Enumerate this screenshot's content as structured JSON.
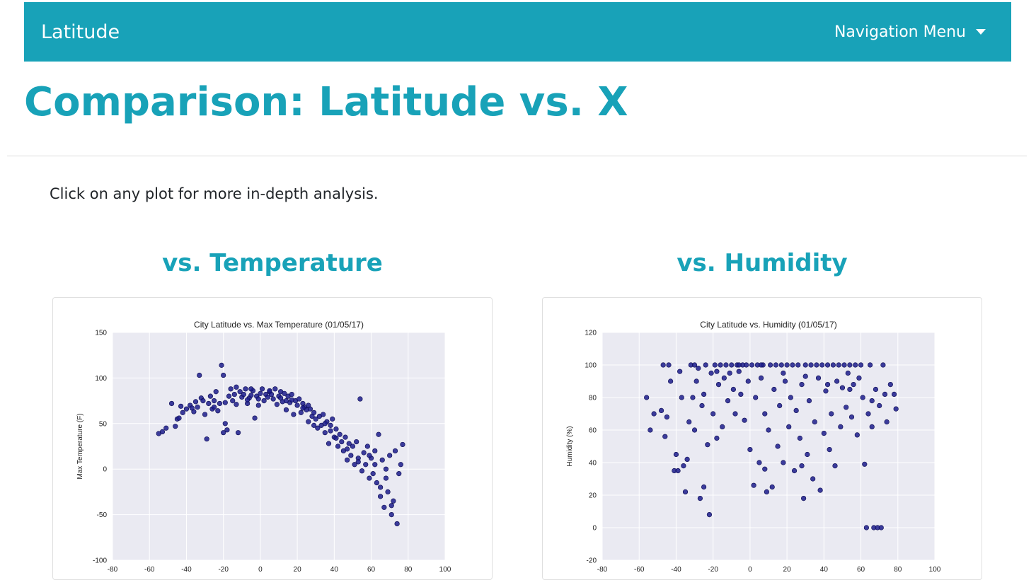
{
  "navbar": {
    "brand": "Latitude",
    "menu_label": "Navigation Menu"
  },
  "page": {
    "title": "Comparison: Latitude vs. X",
    "intro": "Click on any plot for more in-depth analysis."
  },
  "plots": [
    {
      "heading": "vs. Temperature"
    },
    {
      "heading": "vs. Humidity"
    }
  ],
  "colors": {
    "accent": "#18a2b8",
    "plot_bg": "#eaeaf2",
    "marker": "#1c1c8c"
  },
  "chart_data": [
    {
      "type": "scatter",
      "title": "City Latitude vs. Max Temperature (01/05/17)",
      "xlabel": "",
      "ylabel": "Max Temperature (F)",
      "xlim": [
        -80,
        100
      ],
      "ylim": [
        -100,
        150
      ],
      "xticks": [
        -80,
        -60,
        -40,
        -20,
        0,
        20,
        40,
        60,
        80,
        100
      ],
      "yticks": [
        -100,
        -50,
        0,
        50,
        100,
        150
      ],
      "grid": true,
      "points": [
        [
          -55,
          39
        ],
        [
          -53,
          41
        ],
        [
          -51,
          45
        ],
        [
          -46,
          47
        ],
        [
          -45,
          55
        ],
        [
          -44,
          56
        ],
        [
          -42,
          62
        ],
        [
          -40,
          66
        ],
        [
          -38,
          70
        ],
        [
          -36,
          63
        ],
        [
          -35,
          74
        ],
        [
          -34,
          68
        ],
        [
          -33,
          103
        ],
        [
          -32,
          78
        ],
        [
          -30,
          60
        ],
        [
          -29,
          33
        ],
        [
          -28,
          72
        ],
        [
          -27,
          80
        ],
        [
          -26,
          66
        ],
        [
          -25,
          75
        ],
        [
          -24,
          85
        ],
        [
          -23,
          64
        ],
        [
          -22,
          72
        ],
        [
          -21,
          114
        ],
        [
          -20,
          103
        ],
        [
          -19,
          50
        ],
        [
          -18,
          43
        ],
        [
          -17,
          80
        ],
        [
          -16,
          88
        ],
        [
          -15,
          75
        ],
        [
          -14,
          82
        ],
        [
          -13,
          71
        ],
        [
          -12,
          40
        ],
        [
          -11,
          85
        ],
        [
          -10,
          79
        ],
        [
          -9,
          82
        ],
        [
          -8,
          88
        ],
        [
          -7,
          72
        ],
        [
          -6,
          78
        ],
        [
          -5,
          81
        ],
        [
          -4,
          86
        ],
        [
          -3,
          56
        ],
        [
          -2,
          80
        ],
        [
          -1,
          77
        ],
        [
          0,
          83
        ],
        [
          1,
          88
        ],
        [
          2,
          75
        ],
        [
          3,
          82
        ],
        [
          4,
          79
        ],
        [
          5,
          85
        ],
        [
          6,
          82
        ],
        [
          7,
          77
        ],
        [
          8,
          88
        ],
        [
          9,
          71
        ],
        [
          10,
          80
        ],
        [
          11,
          85
        ],
        [
          12,
          74
        ],
        [
          13,
          83
        ],
        [
          14,
          65
        ],
        [
          15,
          80
        ],
        [
          16,
          73
        ],
        [
          17,
          82
        ],
        [
          18,
          60
        ],
        [
          19,
          75
        ],
        [
          20,
          70
        ],
        [
          21,
          77
        ],
        [
          22,
          62
        ],
        [
          23,
          72
        ],
        [
          24,
          68
        ],
        [
          25,
          65
        ],
        [
          26,
          52
        ],
        [
          27,
          66
        ],
        [
          28,
          58
        ],
        [
          29,
          62
        ],
        [
          30,
          55
        ],
        [
          31,
          45
        ],
        [
          32,
          58
        ],
        [
          33,
          48
        ],
        [
          34,
          60
        ],
        [
          35,
          40
        ],
        [
          36,
          52
        ],
        [
          37,
          28
        ],
        [
          38,
          48
        ],
        [
          39,
          55
        ],
        [
          40,
          35
        ],
        [
          41,
          44
        ],
        [
          42,
          25
        ],
        [
          43,
          38
        ],
        [
          44,
          30
        ],
        [
          45,
          20
        ],
        [
          46,
          35
        ],
        [
          47,
          10
        ],
        [
          48,
          28
        ],
        [
          49,
          15
        ],
        [
          50,
          25
        ],
        [
          51,
          5
        ],
        [
          52,
          30
        ],
        [
          53,
          12
        ],
        [
          54,
          77
        ],
        [
          55,
          -2
        ],
        [
          56,
          18
        ],
        [
          57,
          5
        ],
        [
          58,
          25
        ],
        [
          59,
          -10
        ],
        [
          60,
          12
        ],
        [
          61,
          -5
        ],
        [
          62,
          20
        ],
        [
          63,
          -15
        ],
        [
          64,
          38
        ],
        [
          65,
          -30
        ],
        [
          66,
          10
        ],
        [
          67,
          -42
        ],
        [
          68,
          0
        ],
        [
          69,
          -25
        ],
        [
          70,
          15
        ],
        [
          71,
          -50
        ],
        [
          72,
          -35
        ],
        [
          73,
          20
        ],
        [
          74,
          -60
        ],
        [
          75,
          -5
        ],
        [
          76,
          5
        ],
        [
          77,
          27
        ],
        [
          -43,
          69
        ],
        [
          -37,
          67
        ],
        [
          -31,
          75
        ],
        [
          -25,
          68
        ],
        [
          -19,
          73
        ],
        [
          -13,
          90
        ],
        [
          -7,
          76
        ],
        [
          -1,
          70
        ],
        [
          5,
          86
        ],
        [
          11,
          78
        ],
        [
          17,
          76
        ],
        [
          23,
          67
        ],
        [
          29,
          48
        ],
        [
          35,
          50
        ],
        [
          41,
          34
        ],
        [
          47,
          22
        ],
        [
          53,
          8
        ],
        [
          59,
          15
        ],
        [
          65,
          -20
        ],
        [
          71,
          -40
        ],
        [
          -48,
          72
        ],
        [
          -20,
          40
        ],
        [
          14,
          75
        ],
        [
          38,
          42
        ],
        [
          62,
          5
        ],
        [
          68,
          -10
        ],
        [
          -5,
          88
        ],
        [
          26,
          70
        ]
      ]
    },
    {
      "type": "scatter",
      "title": "City Latitude vs. Humidity (01/05/17)",
      "xlabel": "",
      "ylabel": "Humidity (%)",
      "xlim": [
        -80,
        100
      ],
      "ylim": [
        -20,
        120
      ],
      "xticks": [
        -80,
        -60,
        -40,
        -20,
        0,
        20,
        40,
        60,
        80,
        100
      ],
      "yticks": [
        -20,
        0,
        20,
        40,
        60,
        80,
        100,
        120
      ],
      "grid": true,
      "points": [
        [
          -56,
          80
        ],
        [
          -54,
          60
        ],
        [
          -52,
          70
        ],
        [
          -48,
          72
        ],
        [
          -47,
          100
        ],
        [
          -46,
          56
        ],
        [
          -45,
          68
        ],
        [
          -43,
          90
        ],
        [
          -41,
          35
        ],
        [
          -40,
          45
        ],
        [
          -39,
          35
        ],
        [
          -38,
          96
        ],
        [
          -37,
          80
        ],
        [
          -36,
          38
        ],
        [
          -35,
          22
        ],
        [
          -34,
          42
        ],
        [
          -33,
          65
        ],
        [
          -32,
          100
        ],
        [
          -31,
          80
        ],
        [
          -30,
          60
        ],
        [
          -29,
          90
        ],
        [
          -28,
          98
        ],
        [
          -27,
          18
        ],
        [
          -26,
          75
        ],
        [
          -25,
          82
        ],
        [
          -24,
          100
        ],
        [
          -23,
          51
        ],
        [
          -22,
          8
        ],
        [
          -21,
          95
        ],
        [
          -20,
          70
        ],
        [
          -19,
          100
        ],
        [
          -18,
          55
        ],
        [
          -17,
          88
        ],
        [
          -16,
          100
        ],
        [
          -15,
          62
        ],
        [
          -14,
          92
        ],
        [
          -13,
          100
        ],
        [
          -12,
          78
        ],
        [
          -11,
          95
        ],
        [
          -10,
          100
        ],
        [
          -9,
          85
        ],
        [
          -8,
          70
        ],
        [
          -7,
          100
        ],
        [
          -6,
          96
        ],
        [
          -5,
          82
        ],
        [
          -4,
          100
        ],
        [
          -3,
          66
        ],
        [
          -2,
          100
        ],
        [
          -1,
          90
        ],
        [
          0,
          48
        ],
        [
          1,
          100
        ],
        [
          2,
          26
        ],
        [
          3,
          80
        ],
        [
          4,
          100
        ],
        [
          5,
          40
        ],
        [
          6,
          92
        ],
        [
          7,
          100
        ],
        [
          8,
          70
        ],
        [
          9,
          22
        ],
        [
          10,
          60
        ],
        [
          11,
          100
        ],
        [
          12,
          25
        ],
        [
          13,
          85
        ],
        [
          14,
          100
        ],
        [
          15,
          50
        ],
        [
          16,
          75
        ],
        [
          17,
          100
        ],
        [
          18,
          40
        ],
        [
          19,
          90
        ],
        [
          20,
          100
        ],
        [
          21,
          62
        ],
        [
          22,
          80
        ],
        [
          23,
          100
        ],
        [
          24,
          35
        ],
        [
          25,
          72
        ],
        [
          26,
          100
        ],
        [
          27,
          55
        ],
        [
          28,
          88
        ],
        [
          29,
          18
        ],
        [
          30,
          100
        ],
        [
          31,
          45
        ],
        [
          32,
          78
        ],
        [
          33,
          100
        ],
        [
          34,
          30
        ],
        [
          35,
          65
        ],
        [
          36,
          100
        ],
        [
          37,
          92
        ],
        [
          38,
          23
        ],
        [
          39,
          100
        ],
        [
          40,
          58
        ],
        [
          41,
          84
        ],
        [
          42,
          100
        ],
        [
          43,
          48
        ],
        [
          44,
          70
        ],
        [
          45,
          100
        ],
        [
          46,
          38
        ],
        [
          47,
          90
        ],
        [
          48,
          100
        ],
        [
          49,
          62
        ],
        [
          50,
          86
        ],
        [
          51,
          100
        ],
        [
          52,
          74
        ],
        [
          53,
          95
        ],
        [
          54,
          100
        ],
        [
          55,
          68
        ],
        [
          56,
          88
        ],
        [
          57,
          100
        ],
        [
          58,
          57
        ],
        [
          59,
          92
        ],
        [
          60,
          100
        ],
        [
          61,
          80
        ],
        [
          62,
          39
        ],
        [
          63,
          0
        ],
        [
          64,
          70
        ],
        [
          65,
          100
        ],
        [
          66,
          62
        ],
        [
          67,
          0
        ],
        [
          68,
          85
        ],
        [
          69,
          0
        ],
        [
          70,
          75
        ],
        [
          71,
          0
        ],
        [
          72,
          100
        ],
        [
          73,
          82
        ],
        [
          74,
          65
        ],
        [
          76,
          88
        ],
        [
          78,
          82
        ],
        [
          79,
          73
        ],
        [
          -44,
          100
        ],
        [
          -30,
          100
        ],
        [
          -18,
          96
        ],
        [
          -6,
          100
        ],
        [
          6,
          100
        ],
        [
          18,
          95
        ],
        [
          30,
          93
        ],
        [
          42,
          88
        ],
        [
          54,
          85
        ],
        [
          66,
          78
        ],
        [
          -25,
          25
        ],
        [
          8,
          36
        ],
        [
          28,
          38
        ]
      ]
    }
  ]
}
